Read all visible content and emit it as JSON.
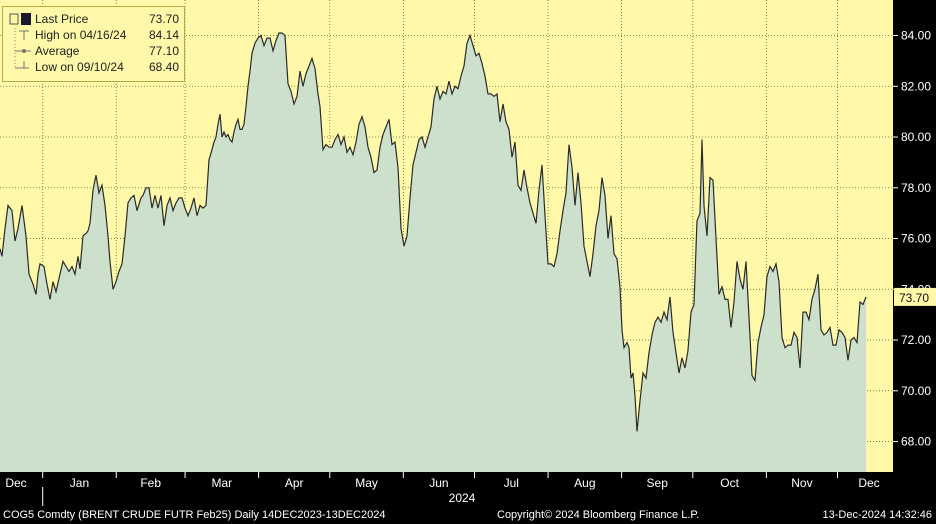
{
  "chart_data": {
    "type": "area",
    "x_start": "2023-12-14",
    "x_end": "2024-12-13",
    "months": [
      "Dec",
      "Jan",
      "Feb",
      "Mar",
      "Apr",
      "May",
      "Jun",
      "Jul",
      "Aug",
      "Sep",
      "Oct",
      "Nov",
      "Dec"
    ],
    "year_label": "2024",
    "ylim": [
      66.8,
      85.4
    ],
    "yticks": [
      68,
      70,
      72,
      74,
      76,
      78,
      80,
      82,
      84
    ],
    "ytick_labels": [
      "68.00",
      "70.00",
      "72.00",
      "74.00",
      "76.00",
      "78.00",
      "80.00",
      "82.00",
      "84.00"
    ],
    "last_value": 73.7,
    "last_label": "73.70",
    "series_points": [
      [
        0,
        75.6
      ],
      [
        2,
        75.3
      ],
      [
        5,
        76.4
      ],
      [
        8,
        77.3
      ],
      [
        12,
        77.1
      ],
      [
        15,
        75.9
      ],
      [
        18,
        76.4
      ],
      [
        22,
        77.3
      ],
      [
        26,
        76.1
      ],
      [
        29,
        74.6
      ],
      [
        31,
        74.4
      ],
      [
        33,
        74.2
      ],
      [
        36,
        73.8
      ],
      [
        38,
        74.6
      ],
      [
        40,
        75.0
      ],
      [
        44,
        74.9
      ],
      [
        47,
        74.2
      ],
      [
        50,
        73.6
      ],
      [
        53,
        74.3
      ],
      [
        56,
        73.9
      ],
      [
        60,
        74.6
      ],
      [
        63,
        75.1
      ],
      [
        66,
        74.9
      ],
      [
        69,
        74.7
      ],
      [
        72,
        74.9
      ],
      [
        75,
        74.6
      ],
      [
        78,
        75.3
      ],
      [
        80,
        74.8
      ],
      [
        83,
        76.1
      ],
      [
        86,
        76.2
      ],
      [
        88,
        76.3
      ],
      [
        90,
        76.6
      ],
      [
        93,
        77.9
      ],
      [
        96,
        78.5
      ],
      [
        99,
        77.8
      ],
      [
        102,
        78.1
      ],
      [
        105,
        77.3
      ],
      [
        108,
        76.1
      ],
      [
        110,
        75.1
      ],
      [
        113,
        74.0
      ],
      [
        116,
        74.3
      ],
      [
        119,
        74.7
      ],
      [
        122,
        75.0
      ],
      [
        125,
        76.1
      ],
      [
        128,
        77.4
      ],
      [
        131,
        77.6
      ],
      [
        134,
        77.7
      ],
      [
        137,
        77.1
      ],
      [
        141,
        77.6
      ],
      [
        143,
        77.7
      ],
      [
        146,
        78.0
      ],
      [
        149,
        78.0
      ],
      [
        152,
        77.2
      ],
      [
        155,
        77.7
      ],
      [
        158,
        77.2
      ],
      [
        161,
        77.7
      ],
      [
        164,
        76.5
      ],
      [
        167,
        77.3
      ],
      [
        170,
        77.6
      ],
      [
        173,
        77.1
      ],
      [
        176,
        77.4
      ],
      [
        179,
        77.6
      ],
      [
        182,
        77.6
      ],
      [
        185,
        77.2
      ],
      [
        188,
        76.9
      ],
      [
        191,
        77.2
      ],
      [
        194,
        77.6
      ],
      [
        197,
        76.9
      ],
      [
        200,
        77.3
      ],
      [
        203,
        77.2
      ],
      [
        206,
        77.3
      ],
      [
        209,
        79.1
      ],
      [
        212,
        79.5
      ],
      [
        214,
        79.8
      ],
      [
        216,
        80.0
      ],
      [
        218,
        80.5
      ],
      [
        220,
        80.9
      ],
      [
        222,
        80.0
      ],
      [
        224,
        80.2
      ],
      [
        226,
        80.0
      ],
      [
        228,
        80.1
      ],
      [
        230,
        79.9
      ],
      [
        232,
        79.8
      ],
      [
        234,
        80.2
      ],
      [
        236,
        80.5
      ],
      [
        238,
        80.7
      ],
      [
        240,
        80.3
      ],
      [
        242,
        80.3
      ],
      [
        244,
        80.5
      ],
      [
        246,
        81.2
      ],
      [
        248,
        82.0
      ],
      [
        250,
        82.6
      ],
      [
        252,
        83.3
      ],
      [
        255,
        83.7
      ],
      [
        258,
        83.9
      ],
      [
        261,
        84.0
      ],
      [
        264,
        83.6
      ],
      [
        267,
        83.9
      ],
      [
        270,
        83.9
      ],
      [
        273,
        83.4
      ],
      [
        276,
        83.8
      ],
      [
        279,
        84.1
      ],
      [
        282,
        84.1
      ],
      [
        285,
        84.0
      ],
      [
        288,
        82.1
      ],
      [
        291,
        81.8
      ],
      [
        294,
        81.3
      ],
      [
        297,
        81.6
      ],
      [
        300,
        82.6
      ],
      [
        303,
        82.0
      ],
      [
        306,
        82.5
      ],
      [
        309,
        82.8
      ],
      [
        312,
        83.1
      ],
      [
        315,
        82.7
      ],
      [
        318,
        81.7
      ],
      [
        320,
        81.2
      ],
      [
        323,
        79.5
      ],
      [
        326,
        79.7
      ],
      [
        329,
        79.6
      ],
      [
        332,
        79.6
      ],
      [
        335,
        79.9
      ],
      [
        338,
        80.1
      ],
      [
        341,
        79.7
      ],
      [
        344,
        80.0
      ],
      [
        347,
        79.4
      ],
      [
        350,
        79.6
      ],
      [
        353,
        79.3
      ],
      [
        356,
        79.8
      ],
      [
        359,
        80.5
      ],
      [
        362,
        80.8
      ],
      [
        365,
        80.4
      ],
      [
        368,
        79.6
      ],
      [
        371,
        79.2
      ],
      [
        374,
        78.6
      ],
      [
        377,
        78.7
      ],
      [
        380,
        79.6
      ],
      [
        383,
        80.1
      ],
      [
        386,
        80.4
      ],
      [
        389,
        80.7
      ],
      [
        392,
        79.7
      ],
      [
        395,
        79.8
      ],
      [
        398,
        78.8
      ],
      [
        401,
        76.4
      ],
      [
        404,
        75.7
      ],
      [
        407,
        76.1
      ],
      [
        410,
        77.6
      ],
      [
        413,
        78.9
      ],
      [
        416,
        79.4
      ],
      [
        419,
        79.9
      ],
      [
        422,
        80.0
      ],
      [
        425,
        79.6
      ],
      [
        428,
        80.0
      ],
      [
        431,
        80.4
      ],
      [
        434,
        81.5
      ],
      [
        437,
        82.0
      ],
      [
        440,
        81.5
      ],
      [
        443,
        81.8
      ],
      [
        446,
        81.7
      ],
      [
        449,
        82.2
      ],
      [
        452,
        81.7
      ],
      [
        455,
        82.0
      ],
      [
        458,
        81.9
      ],
      [
        461,
        82.4
      ],
      [
        464,
        82.8
      ],
      [
        467,
        83.7
      ],
      [
        470,
        84.0
      ],
      [
        473,
        83.6
      ],
      [
        476,
        83.2
      ],
      [
        479,
        83.3
      ],
      [
        482,
        82.9
      ],
      [
        485,
        82.4
      ],
      [
        488,
        81.7
      ],
      [
        491,
        81.7
      ],
      [
        494,
        81.6
      ],
      [
        497,
        81.7
      ],
      [
        500,
        80.6
      ],
      [
        503,
        81.3
      ],
      [
        506,
        80.6
      ],
      [
        509,
        80.3
      ],
      [
        512,
        79.2
      ],
      [
        515,
        79.8
      ],
      [
        518,
        78.1
      ],
      [
        521,
        77.9
      ],
      [
        524,
        78.7
      ],
      [
        527,
        78.0
      ],
      [
        530,
        77.4
      ],
      [
        533,
        77.0
      ],
      [
        536,
        76.6
      ],
      [
        539,
        77.9
      ],
      [
        542,
        78.9
      ],
      [
        545,
        76.9
      ],
      [
        548,
        75.0
      ],
      [
        551,
        75.0
      ],
      [
        554,
        74.9
      ],
      [
        557,
        75.4
      ],
      [
        560,
        76.3
      ],
      [
        563,
        77.1
      ],
      [
        566,
        77.8
      ],
      [
        569,
        79.7
      ],
      [
        572,
        78.8
      ],
      [
        575,
        77.3
      ],
      [
        578,
        78.6
      ],
      [
        581,
        77.4
      ],
      [
        584,
        75.7
      ],
      [
        587,
        75.1
      ],
      [
        590,
        74.5
      ],
      [
        593,
        75.4
      ],
      [
        596,
        76.5
      ],
      [
        599,
        77.1
      ],
      [
        602,
        78.4
      ],
      [
        605,
        77.7
      ],
      [
        608,
        76.0
      ],
      [
        611,
        76.9
      ],
      [
        614,
        75.4
      ],
      [
        617,
        75.2
      ],
      [
        620,
        74.1
      ],
      [
        622,
        72.4
      ],
      [
        624,
        71.7
      ],
      [
        627,
        71.9
      ],
      [
        629,
        71.7
      ],
      [
        631,
        70.5
      ],
      [
        633,
        70.7
      ],
      [
        635,
        69.8
      ],
      [
        637,
        68.4
      ],
      [
        640,
        69.6
      ],
      [
        643,
        70.7
      ],
      [
        646,
        70.5
      ],
      [
        649,
        71.5
      ],
      [
        652,
        72.2
      ],
      [
        655,
        72.7
      ],
      [
        658,
        72.9
      ],
      [
        661,
        72.7
      ],
      [
        664,
        73.1
      ],
      [
        667,
        72.8
      ],
      [
        670,
        73.7
      ],
      [
        673,
        72.3
      ],
      [
        676,
        71.5
      ],
      [
        679,
        70.7
      ],
      [
        682,
        71.3
      ],
      [
        685,
        70.9
      ],
      [
        688,
        71.6
      ],
      [
        691,
        73.1
      ],
      [
        694,
        73.4
      ],
      [
        697,
        76.7
      ],
      [
        700,
        77.0
      ],
      [
        702,
        79.9
      ],
      [
        704,
        77.3
      ],
      [
        707,
        76.1
      ],
      [
        710,
        78.4
      ],
      [
        713,
        78.3
      ],
      [
        716,
        76.0
      ],
      [
        719,
        73.8
      ],
      [
        722,
        74.1
      ],
      [
        725,
        73.6
      ],
      [
        728,
        73.6
      ],
      [
        731,
        72.5
      ],
      [
        734,
        73.5
      ],
      [
        737,
        75.1
      ],
      [
        740,
        74.4
      ],
      [
        743,
        74.0
      ],
      [
        746,
        75.1
      ],
      [
        749,
        72.9
      ],
      [
        752,
        70.6
      ],
      [
        755,
        70.4
      ],
      [
        758,
        71.9
      ],
      [
        761,
        72.5
      ],
      [
        764,
        73.0
      ],
      [
        767,
        74.5
      ],
      [
        770,
        74.9
      ],
      [
        773,
        74.7
      ],
      [
        776,
        75.0
      ],
      [
        779,
        74.3
      ],
      [
        782,
        72.1
      ],
      [
        785,
        71.7
      ],
      [
        788,
        71.8
      ],
      [
        791,
        71.8
      ],
      [
        794,
        72.3
      ],
      [
        797,
        72.1
      ],
      [
        800,
        70.9
      ],
      [
        803,
        73.1
      ],
      [
        806,
        73.1
      ],
      [
        809,
        72.8
      ],
      [
        812,
        73.6
      ],
      [
        815,
        74.0
      ],
      [
        818,
        74.6
      ],
      [
        821,
        72.4
      ],
      [
        824,
        72.2
      ],
      [
        827,
        72.3
      ],
      [
        830,
        72.5
      ],
      [
        833,
        71.8
      ],
      [
        836,
        71.8
      ],
      [
        839,
        72.4
      ],
      [
        842,
        72.3
      ],
      [
        845,
        72.1
      ],
      [
        848,
        71.2
      ],
      [
        851,
        72.0
      ],
      [
        854,
        72.1
      ],
      [
        857,
        71.9
      ],
      [
        860,
        73.5
      ],
      [
        863,
        73.4
      ],
      [
        866,
        73.7
      ]
    ],
    "legend": {
      "last": {
        "label": "Last Price",
        "value": "73.70"
      },
      "high": {
        "label": "High on 04/16/24",
        "value": "84.14"
      },
      "avg": {
        "label": "Average",
        "value": "77.10"
      },
      "low": {
        "label": "Low on 09/10/24",
        "value": "68.40"
      }
    }
  },
  "footer": {
    "left": "COG5 Comdty (BRENT CRUDE FUTR  Feb25)  Daily 14DEC2023-13DEC2024",
    "center": "Copyright© 2024 Bloomberg Finance L.P.",
    "right": "13-Dec-2024 14:32:46"
  },
  "colors": {
    "bg": "#fff8a8",
    "fill": "#cde0cb",
    "line": "#2b2b2b",
    "grid": "#6b6b3a"
  }
}
